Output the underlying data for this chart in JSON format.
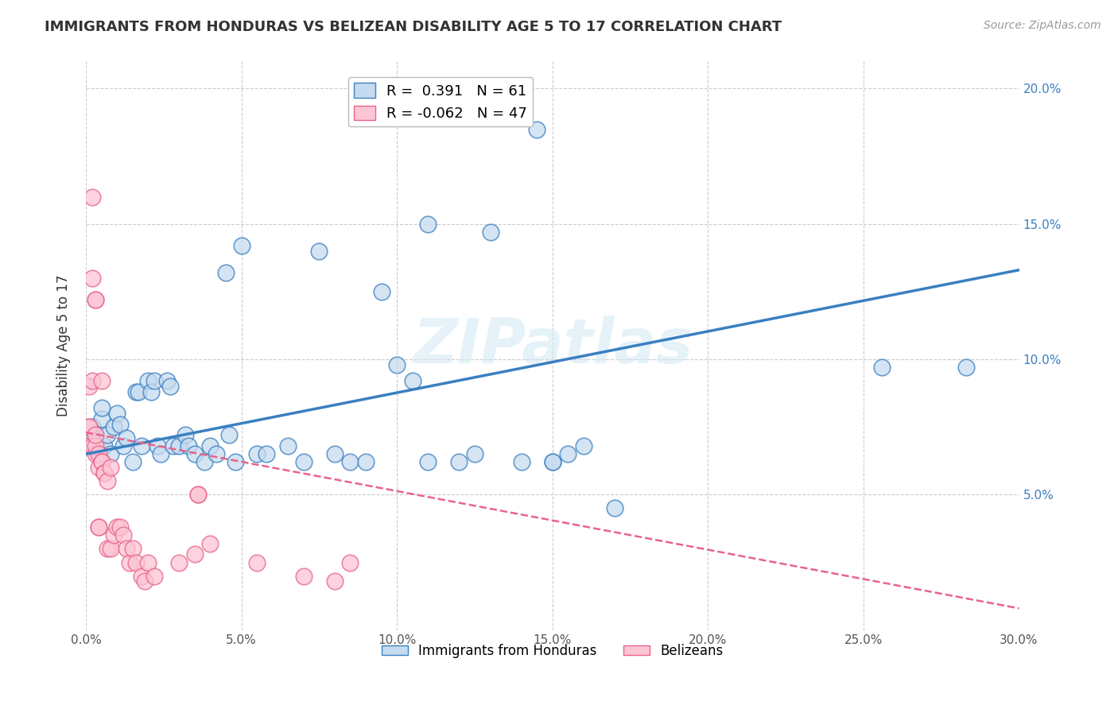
{
  "title": "IMMIGRANTS FROM HONDURAS VS BELIZEAN DISABILITY AGE 5 TO 17 CORRELATION CHART",
  "source": "Source: ZipAtlas.com",
  "ylabel": "Disability Age 5 to 17",
  "xlim": [
    0.0,
    0.3
  ],
  "ylim": [
    0.0,
    0.21
  ],
  "xticks": [
    0.0,
    0.05,
    0.1,
    0.15,
    0.2,
    0.25,
    0.3
  ],
  "yticks": [
    0.0,
    0.05,
    0.1,
    0.15,
    0.2
  ],
  "xtick_labels": [
    "0.0%",
    "5.0%",
    "10.0%",
    "15.0%",
    "20.0%",
    "25.0%",
    "30.0%"
  ],
  "ytick_labels_right": [
    "",
    "5.0%",
    "10.0%",
    "15.0%",
    "20.0%"
  ],
  "blue_color": "#3a7fc1",
  "pink_color": "#e8648a",
  "blue_fill": "#c6dbef",
  "pink_fill": "#fcc5d5",
  "watermark": "ZIPatlas",
  "blue_r": 0.391,
  "blue_n": 61,
  "pink_r": -0.062,
  "pink_n": 47,
  "blue_line": [
    0.0,
    0.065,
    0.3,
    0.133
  ],
  "pink_line": [
    0.0,
    0.073,
    0.3,
    0.008
  ],
  "blue_points": [
    [
      0.001,
      0.071
    ],
    [
      0.002,
      0.075
    ],
    [
      0.003,
      0.068
    ],
    [
      0.003,
      0.072
    ],
    [
      0.004,
      0.065
    ],
    [
      0.005,
      0.078
    ],
    [
      0.005,
      0.082
    ],
    [
      0.006,
      0.068
    ],
    [
      0.007,
      0.072
    ],
    [
      0.008,
      0.065
    ],
    [
      0.009,
      0.075
    ],
    [
      0.01,
      0.08
    ],
    [
      0.011,
      0.076
    ],
    [
      0.012,
      0.068
    ],
    [
      0.013,
      0.071
    ],
    [
      0.015,
      0.062
    ],
    [
      0.016,
      0.088
    ],
    [
      0.017,
      0.088
    ],
    [
      0.018,
      0.068
    ],
    [
      0.02,
      0.092
    ],
    [
      0.021,
      0.088
    ],
    [
      0.022,
      0.092
    ],
    [
      0.023,
      0.068
    ],
    [
      0.024,
      0.065
    ],
    [
      0.026,
      0.092
    ],
    [
      0.027,
      0.09
    ],
    [
      0.028,
      0.068
    ],
    [
      0.03,
      0.068
    ],
    [
      0.032,
      0.072
    ],
    [
      0.033,
      0.068
    ],
    [
      0.035,
      0.065
    ],
    [
      0.038,
      0.062
    ],
    [
      0.04,
      0.068
    ],
    [
      0.042,
      0.065
    ],
    [
      0.046,
      0.072
    ],
    [
      0.048,
      0.062
    ],
    [
      0.055,
      0.065
    ],
    [
      0.058,
      0.065
    ],
    [
      0.065,
      0.068
    ],
    [
      0.07,
      0.062
    ],
    [
      0.08,
      0.065
    ],
    [
      0.085,
      0.062
    ],
    [
      0.09,
      0.062
    ],
    [
      0.1,
      0.098
    ],
    [
      0.105,
      0.092
    ],
    [
      0.11,
      0.062
    ],
    [
      0.12,
      0.062
    ],
    [
      0.125,
      0.065
    ],
    [
      0.14,
      0.062
    ],
    [
      0.15,
      0.062
    ],
    [
      0.155,
      0.065
    ],
    [
      0.16,
      0.068
    ],
    [
      0.045,
      0.132
    ],
    [
      0.05,
      0.142
    ],
    [
      0.075,
      0.14
    ],
    [
      0.095,
      0.125
    ],
    [
      0.11,
      0.15
    ],
    [
      0.13,
      0.147
    ],
    [
      0.145,
      0.185
    ],
    [
      0.256,
      0.097
    ],
    [
      0.283,
      0.097
    ],
    [
      0.15,
      0.062
    ],
    [
      0.17,
      0.045
    ]
  ],
  "pink_points": [
    [
      0.001,
      0.068
    ],
    [
      0.001,
      0.075
    ],
    [
      0.001,
      0.075
    ],
    [
      0.001,
      0.09
    ],
    [
      0.002,
      0.068
    ],
    [
      0.002,
      0.092
    ],
    [
      0.002,
      0.13
    ],
    [
      0.002,
      0.16
    ],
    [
      0.003,
      0.065
    ],
    [
      0.003,
      0.068
    ],
    [
      0.003,
      0.072
    ],
    [
      0.003,
      0.122
    ],
    [
      0.003,
      0.122
    ],
    [
      0.004,
      0.06
    ],
    [
      0.004,
      0.065
    ],
    [
      0.004,
      0.038
    ],
    [
      0.004,
      0.038
    ],
    [
      0.005,
      0.062
    ],
    [
      0.005,
      0.062
    ],
    [
      0.005,
      0.092
    ],
    [
      0.006,
      0.058
    ],
    [
      0.006,
      0.058
    ],
    [
      0.007,
      0.055
    ],
    [
      0.007,
      0.03
    ],
    [
      0.008,
      0.06
    ],
    [
      0.008,
      0.03
    ],
    [
      0.009,
      0.035
    ],
    [
      0.01,
      0.038
    ],
    [
      0.011,
      0.038
    ],
    [
      0.012,
      0.035
    ],
    [
      0.013,
      0.03
    ],
    [
      0.014,
      0.025
    ],
    [
      0.015,
      0.03
    ],
    [
      0.016,
      0.025
    ],
    [
      0.018,
      0.02
    ],
    [
      0.019,
      0.018
    ],
    [
      0.02,
      0.025
    ],
    [
      0.022,
      0.02
    ],
    [
      0.03,
      0.025
    ],
    [
      0.035,
      0.028
    ],
    [
      0.036,
      0.05
    ],
    [
      0.036,
      0.05
    ],
    [
      0.04,
      0.032
    ],
    [
      0.055,
      0.025
    ],
    [
      0.07,
      0.02
    ],
    [
      0.08,
      0.018
    ],
    [
      0.085,
      0.025
    ]
  ]
}
